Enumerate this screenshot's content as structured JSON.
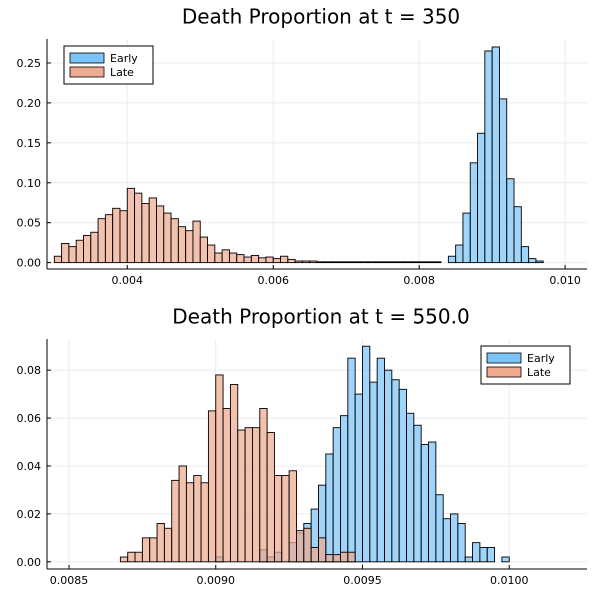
{
  "colors": {
    "early": "#7cc4f7",
    "late": "#eeab8f",
    "grid": "#ebebeb",
    "axis": "#000000",
    "bar_stroke": "#000000"
  },
  "chart_data": [
    {
      "type": "bar",
      "title": "Death Proportion at t = 350",
      "xlim": [
        0.0029,
        0.0103
      ],
      "ylim": [
        -0.008,
        0.28
      ],
      "xticks": [
        0.004,
        0.006,
        0.008,
        0.01
      ],
      "xtick_labels": [
        "0.004",
        "0.006",
        "0.008",
        "0.010"
      ],
      "yticks": [
        0.0,
        0.05,
        0.1,
        0.15,
        0.2,
        0.25
      ],
      "ytick_labels": [
        "0.00",
        "0.05",
        "0.10",
        "0.15",
        "0.20",
        "0.25"
      ],
      "grid": true,
      "legend_position": "top-left",
      "series": [
        {
          "name": "Early",
          "color_key": "early",
          "bin_start": 0.003,
          "bin_width": 0.0001,
          "values": [
            0,
            0,
            0,
            0,
            0,
            0,
            0,
            0,
            0,
            0,
            0,
            0,
            0,
            0,
            0,
            0,
            0,
            0,
            0,
            0,
            0,
            0,
            0,
            0,
            0,
            0,
            0,
            0,
            0,
            0,
            0,
            0,
            0,
            0,
            0,
            0,
            0,
            0,
            0,
            0,
            0,
            0,
            0,
            0,
            0,
            0,
            0,
            0,
            0,
            0,
            0,
            0,
            0,
            0,
            0.008,
            0.022,
            0.062,
            0.125,
            0.162,
            0.265,
            0.27,
            0.205,
            0.105,
            0.07,
            0.02,
            0.005,
            0.002,
            0,
            0,
            0
          ]
        },
        {
          "name": "Late",
          "color_key": "late",
          "bin_start": 0.003,
          "bin_width": 0.0001,
          "values": [
            0.008,
            0.024,
            0.02,
            0.028,
            0.034,
            0.038,
            0.055,
            0.06,
            0.068,
            0.065,
            0.093,
            0.087,
            0.074,
            0.081,
            0.071,
            0.062,
            0.055,
            0.045,
            0.04,
            0.052,
            0.032,
            0.022,
            0.012,
            0.016,
            0.012,
            0.01,
            0.007,
            0.009,
            0.006,
            0.007,
            0.005,
            0.008,
            0.004,
            0.002,
            0.002,
            0.002,
            0.001,
            0.001,
            0.001,
            0.001,
            0.001,
            0.001,
            0.001,
            0.001,
            0.001,
            0.001,
            0.001,
            0.001,
            0.001,
            0.001,
            0.001,
            0.001,
            0.001,
            0,
            0,
            0,
            0,
            0,
            0,
            0,
            0,
            0,
            0,
            0,
            0,
            0,
            0,
            0,
            0,
            0
          ]
        }
      ]
    },
    {
      "type": "bar",
      "title": "Death Proportion at t = 550.0",
      "xlim": [
        0.008425,
        0.010265
      ],
      "ylim": [
        -0.003,
        0.093
      ],
      "xticks": [
        0.0085,
        0.009,
        0.0095,
        0.01
      ],
      "xtick_labels": [
        "0.0085",
        "0.0090",
        "0.0095",
        "0.0100"
      ],
      "yticks": [
        0.0,
        0.02,
        0.04,
        0.06,
        0.08
      ],
      "ytick_labels": [
        "0.00",
        "0.02",
        "0.04",
        "0.06",
        "0.08"
      ],
      "grid": true,
      "legend_position": "top-right",
      "series": [
        {
          "name": "Early",
          "color_key": "early",
          "bin_start": 0.0085,
          "bin_width": 2.5e-05,
          "values": [
            0,
            0,
            0,
            0,
            0,
            0,
            0,
            0,
            0,
            0,
            0,
            0,
            0,
            0,
            0,
            0,
            0,
            0,
            0,
            0,
            0.002,
            0,
            0,
            0,
            0,
            0,
            0.005,
            0.002,
            0.004,
            0,
            0.008,
            0.012,
            0.016,
            0.022,
            0.032,
            0.045,
            0.056,
            0.061,
            0.085,
            0.07,
            0.09,
            0.075,
            0.085,
            0.08,
            0.076,
            0.072,
            0.062,
            0.057,
            0.049,
            0.05,
            0.028,
            0.018,
            0.02,
            0.016,
            0.002,
            0.008,
            0.006,
            0.006,
            0,
            0.002,
            0
          ]
        },
        {
          "name": "Late",
          "color_key": "late",
          "bin_start": 0.0085,
          "bin_width": 2.5e-05,
          "values": [
            0,
            0,
            0,
            0,
            0,
            0,
            0,
            0.002,
            0.004,
            0.004,
            0.01,
            0.01,
            0.016,
            0.014,
            0.034,
            0.04,
            0.033,
            0.036,
            0.033,
            0.063,
            0.078,
            0.064,
            0.074,
            0.055,
            0.056,
            0.056,
            0.064,
            0.054,
            0.036,
            0.036,
            0.038,
            0.013,
            0.014,
            0.006,
            0.01,
            0.003,
            0.003,
            0.004,
            0.004,
            0,
            0,
            0,
            0,
            0,
            0,
            0,
            0,
            0,
            0,
            0,
            0,
            0,
            0,
            0,
            0,
            0,
            0,
            0,
            0,
            0,
            0
          ]
        }
      ]
    }
  ]
}
